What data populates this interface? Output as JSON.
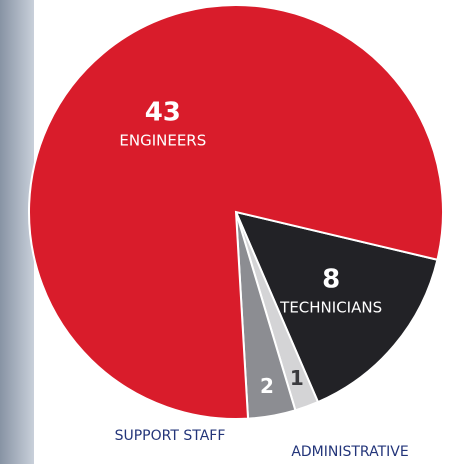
{
  "chart_data": {
    "type": "pie",
    "categories": [
      "TECHNICIANS",
      "ADMINISTRATIVE",
      "SUPPORT STAFF",
      "ENGINEERS"
    ],
    "values": [
      8,
      1,
      2,
      43
    ],
    "colors": [
      "#222226",
      "#d4d4d6",
      "#8c8d92",
      "#d91c2b"
    ]
  }
}
